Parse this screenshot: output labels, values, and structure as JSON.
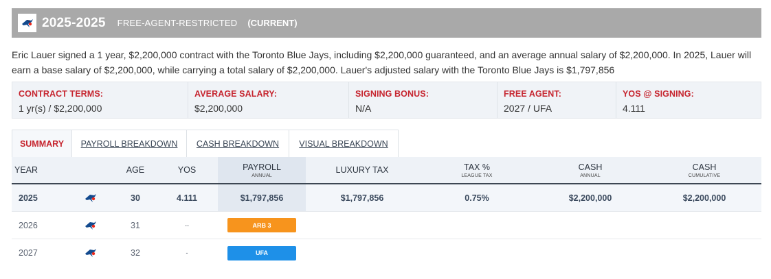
{
  "header": {
    "year_range": "2025-2025",
    "status": "FREE-AGENT-RESTRICTED",
    "current": "(CURRENT)"
  },
  "description": "Eric Lauer signed a 1 year, $2,200,000 contract with the Toronto Blue Jays, including $2,200,000 guaranteed, and an average annual salary of $2,200,000. In 2025, Lauer will earn a base salary of $2,200,000, while carrying a total salary of $2,200,000. Lauer's adjusted salary with the Toronto Blue Jays is $1,797,856",
  "terms": [
    {
      "label": "CONTRACT TERMS:",
      "value": "1 yr(s) / $2,200,000"
    },
    {
      "label": "AVERAGE SALARY:",
      "value": "$2,200,000"
    },
    {
      "label": "SIGNING BONUS:",
      "value": "N/A"
    },
    {
      "label": "FREE AGENT:",
      "value": "2027 / UFA"
    },
    {
      "label": "YOS @ SIGNING:",
      "value": "4.111"
    }
  ],
  "tabs": [
    {
      "label": "SUMMARY",
      "active": true
    },
    {
      "label": "PAYROLL BREAKDOWN"
    },
    {
      "label": "CASH BREAKDOWN"
    },
    {
      "label": "VISUAL BREAKDOWN"
    }
  ],
  "table": {
    "headers": {
      "year": "YEAR",
      "age": "AGE",
      "yos": "YOS",
      "payroll": "PAYROLL",
      "payroll_sub": "ANNUAL",
      "luxury_tax": "LUXURY TAX",
      "tax_pct": "TAX %",
      "tax_pct_sub": "LEAGUE TAX",
      "cash": "CASH",
      "cash_sub": "ANNUAL",
      "cash_cum": "CASH",
      "cash_cum_sub": "CUMULATIVE"
    },
    "rows": [
      {
        "year": "2025",
        "team_icon": "blue-jays-logo-icon",
        "age": "30",
        "yos": "4.111",
        "payroll": "$1,797,856",
        "luxury_tax": "$1,797,856",
        "tax_pct": "0.75%",
        "cash": "$2,200,000",
        "cash_cum": "$2,200,000"
      },
      {
        "year": "2026",
        "team_icon": "blue-jays-logo-icon",
        "age": "31",
        "yos": "--",
        "status_badge": "ARB 3",
        "badge_color": "#f7941d"
      },
      {
        "year": "2027",
        "team_icon": "blue-jays-logo-icon",
        "age": "32",
        "yos": "-",
        "status_badge": "UFA",
        "badge_color": "#1e90e8"
      }
    ]
  },
  "colors": {
    "header_bg": "#a9a9a9",
    "accent_red": "#c6252f",
    "arb_orange": "#f7941d",
    "ufa_blue": "#1e90e8"
  }
}
